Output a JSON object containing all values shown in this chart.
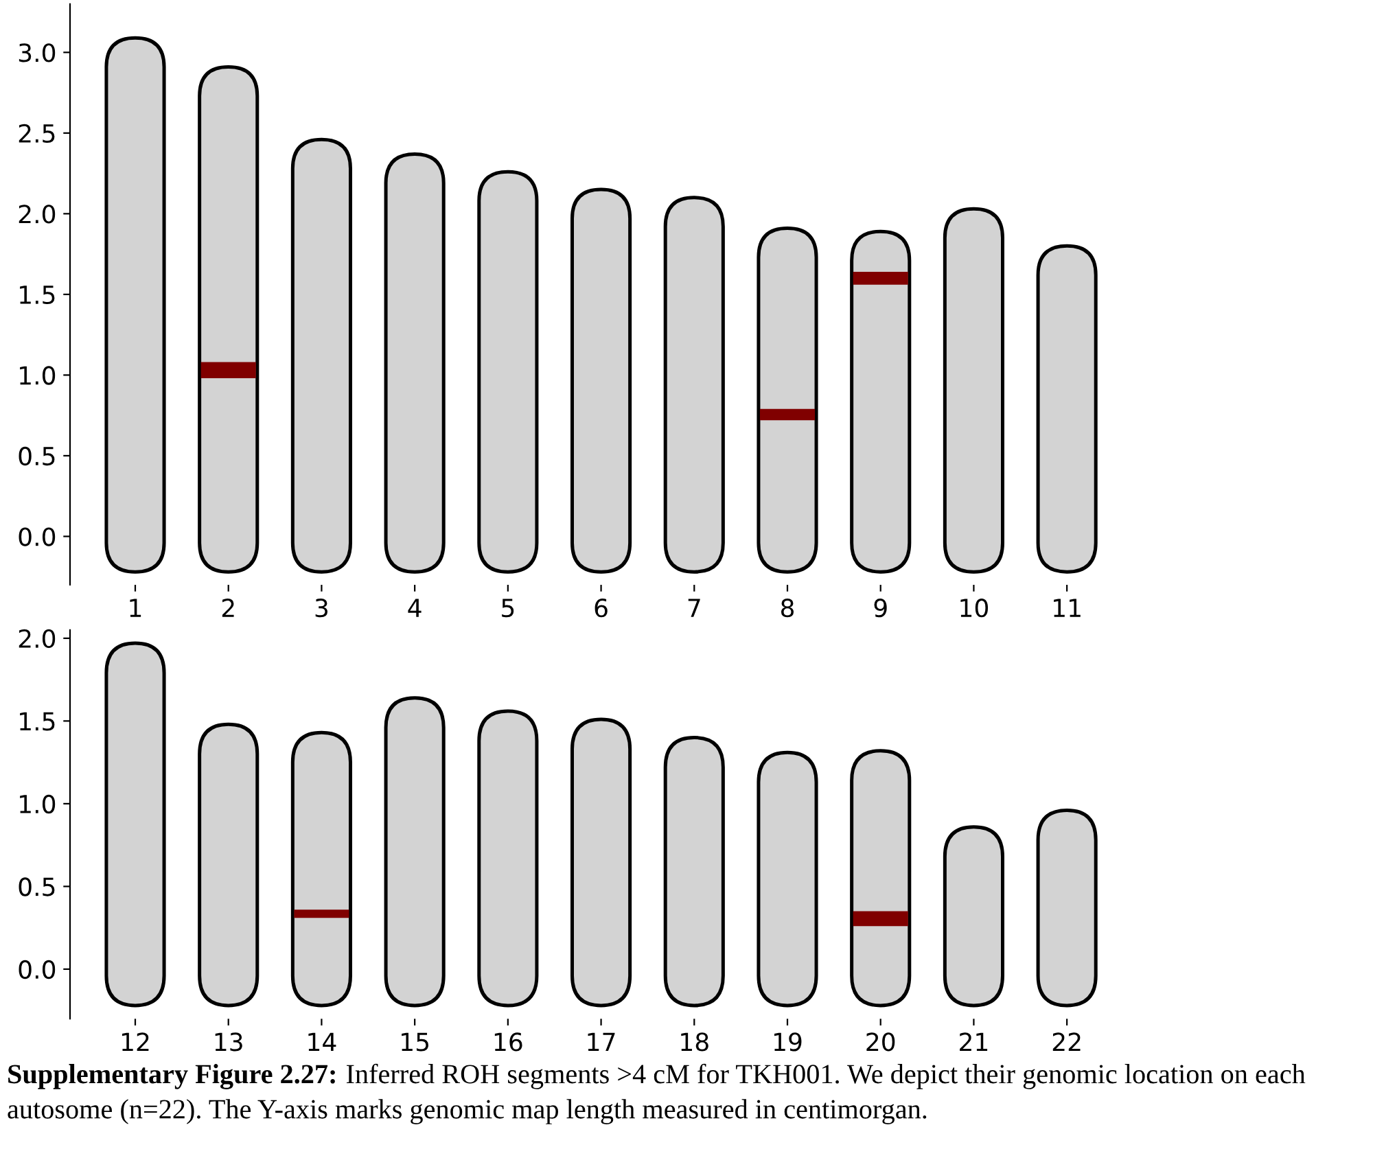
{
  "chart_data": [
    {
      "type": "bar",
      "categories": [
        "1",
        "2",
        "3",
        "4",
        "5",
        "6",
        "7",
        "8",
        "9",
        "10",
        "11"
      ],
      "series": [
        {
          "color": "#d3d3d3",
          "base": [
            -0.22,
            -0.22,
            -0.22,
            -0.22,
            -0.22,
            -0.22,
            -0.22,
            -0.22,
            -0.22,
            -0.22,
            -0.22
          ],
          "values": [
            3.31,
            3.13,
            2.68,
            2.59,
            2.48,
            2.37,
            2.32,
            2.13,
            2.11,
            2.25,
            2.02
          ]
        },
        {
          "color": "#800000",
          "base": [
            null,
            0.98,
            null,
            null,
            null,
            null,
            null,
            0.72,
            1.56,
            null,
            null
          ],
          "values": [
            null,
            0.1,
            null,
            null,
            null,
            null,
            null,
            0.07,
            0.08,
            null,
            null
          ]
        }
      ],
      "ylim": [
        -0.3,
        3.3
      ],
      "yticks": [
        {
          "value": 0,
          "label": "0.0"
        },
        {
          "value": 0.5,
          "label": "0.5"
        },
        {
          "value": 1,
          "label": "1.0"
        },
        {
          "value": 1.5,
          "label": "1.5"
        },
        {
          "value": 2,
          "label": "2.0"
        },
        {
          "value": 2.5,
          "label": "2.5"
        },
        {
          "value": 3,
          "label": "3.0"
        }
      ],
      "grid": false,
      "legend": false
    },
    {
      "type": "bar",
      "categories": [
        "12",
        "13",
        "14",
        "15",
        "16",
        "17",
        "18",
        "19",
        "20",
        "21",
        "22"
      ],
      "series": [
        {
          "color": "#d3d3d3",
          "base": [
            -0.22,
            -0.22,
            -0.22,
            -0.22,
            -0.22,
            -0.22,
            -0.22,
            -0.22,
            -0.22,
            -0.22,
            -0.22
          ],
          "values": [
            2.19,
            1.7,
            1.65,
            1.86,
            1.78,
            1.73,
            1.62,
            1.53,
            1.54,
            1.08,
            1.18
          ]
        },
        {
          "color": "#800000",
          "base": [
            null,
            null,
            0.31,
            null,
            null,
            null,
            null,
            null,
            0.26,
            null,
            null
          ],
          "values": [
            null,
            null,
            0.05,
            null,
            null,
            null,
            null,
            null,
            0.09,
            null,
            null
          ]
        }
      ],
      "ylim": [
        -0.3,
        2.05
      ],
      "yticks": [
        {
          "value": 0,
          "label": "0.0"
        },
        {
          "value": 0.5,
          "label": "0.5"
        },
        {
          "value": 1,
          "label": "1.0"
        },
        {
          "value": 1.5,
          "label": "1.5"
        },
        {
          "value": 2,
          "label": "2.0"
        }
      ],
      "grid": false,
      "legend": false,
      "annotations": [
        "Supplementary Figure 2.27:",
        "Inferred ROH segments >4 cM for TKH001. We depict their genomic location on each autosome (n=22). The Y-axis marks genomic map length measured in centimorgan."
      ]
    }
  ]
}
